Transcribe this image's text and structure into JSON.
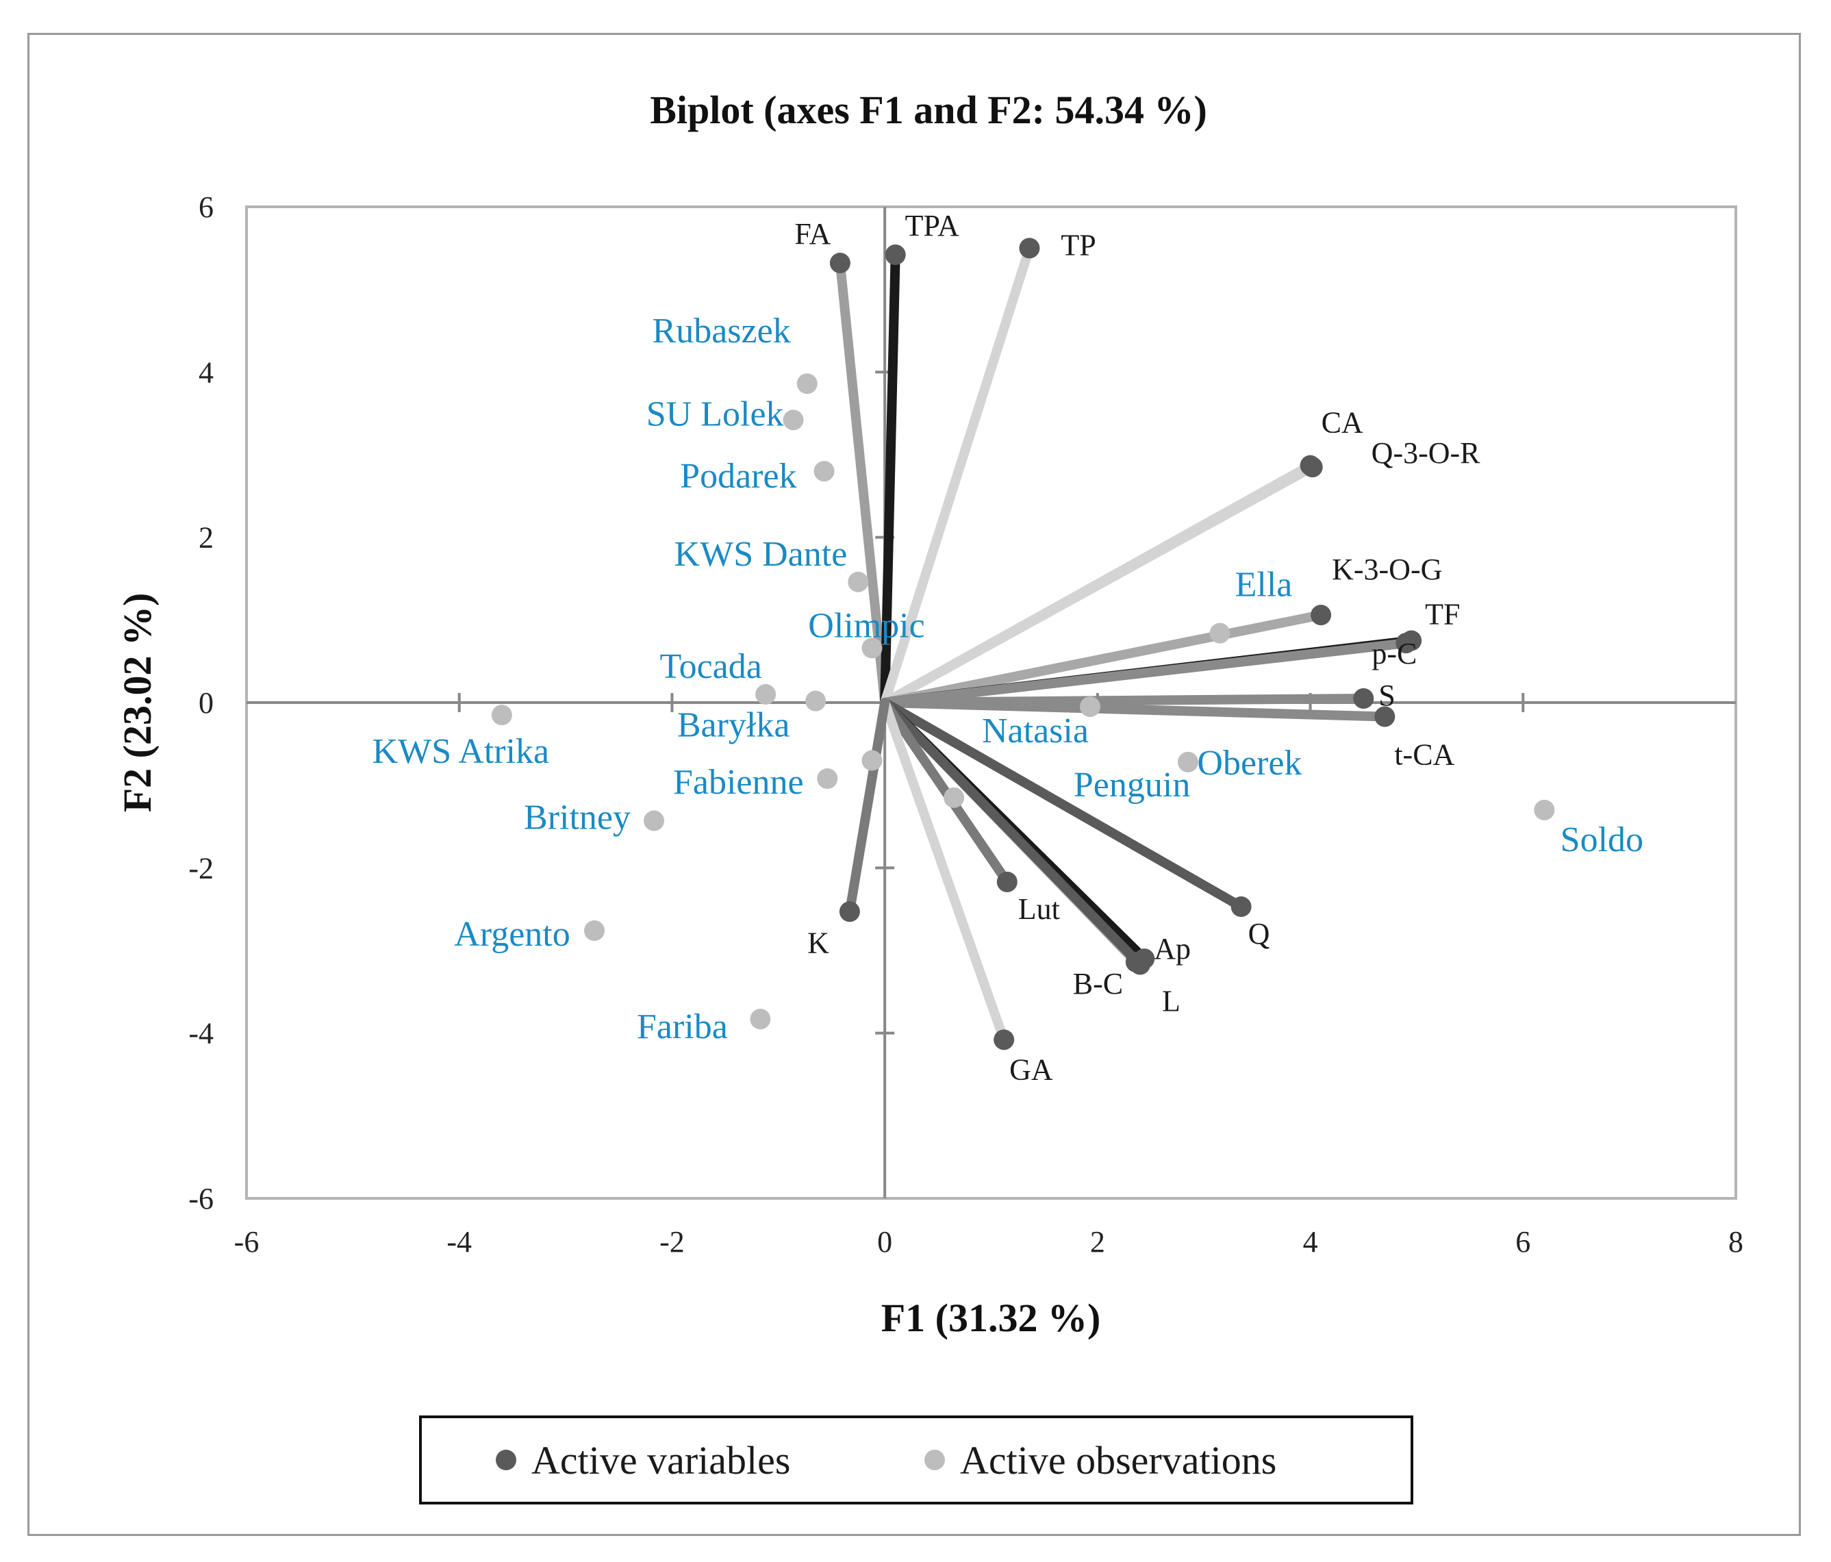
{
  "chart_data": {
    "type": "scatter",
    "title": "Biplot (axes F1 and F2: 54.34 %)",
    "xlabel": "F1 (31.32 %)",
    "ylabel": "F2 (23.02 %)",
    "xlim": [
      -6,
      8
    ],
    "ylim": [
      -6,
      6
    ],
    "xticks": [
      -6,
      -4,
      -2,
      0,
      2,
      4,
      6,
      8
    ],
    "yticks": [
      -6,
      -4,
      -2,
      0,
      2,
      4,
      6
    ],
    "grid": false,
    "legend_position": "bottom",
    "colors": {
      "variable_point": "#5a5a5a",
      "observation_point": "#bdbdbd",
      "variable_label": "#1a1a1a",
      "observation_label": "#1a8ac4",
      "axis": "#888888"
    },
    "series": [
      {
        "name": "Active variables",
        "color": "#5a5a5a",
        "points": [
          {
            "label": "FA",
            "x": -0.42,
            "y": 5.32,
            "line_color": "#9e9e9e"
          },
          {
            "label": "TPA",
            "x": 0.1,
            "y": 5.42,
            "line_color": "#1a1a1a"
          },
          {
            "label": "TP",
            "x": 1.36,
            "y": 5.5,
            "line_color": "#d4d4d4"
          },
          {
            "label": "CA",
            "x": 4.0,
            "y": 2.87,
            "line_color": "#d4d4d4"
          },
          {
            "label": "Q-3-O-R",
            "x": 4.02,
            "y": 2.85,
            "line_color": "#d4d4d4"
          },
          {
            "label": "K-3-O-G",
            "x": 4.1,
            "y": 1.06,
            "line_color": "#a8a8a8"
          },
          {
            "label": "TF",
            "x": 4.95,
            "y": 0.75,
            "line_color": "#1a1a1a"
          },
          {
            "label": "p-C",
            "x": 4.9,
            "y": 0.72,
            "line_color": "#8a8a8a"
          },
          {
            "label": "S",
            "x": 4.5,
            "y": 0.05,
            "line_color": "#8a8a8a"
          },
          {
            "label": "t-CA",
            "x": 4.7,
            "y": -0.17,
            "line_color": "#8a8a8a"
          },
          {
            "label": "Q",
            "x": 3.35,
            "y": -2.47,
            "line_color": "#5a5a5a"
          },
          {
            "label": "Ap",
            "x": 2.44,
            "y": -3.1,
            "line_color": "#1a1a1a"
          },
          {
            "label": "B-C",
            "x": 2.36,
            "y": -3.14,
            "line_color": "#a8a8a8"
          },
          {
            "label": "L",
            "x": 2.4,
            "y": -3.17,
            "line_color": "#5a5a5a"
          },
          {
            "label": "Lut",
            "x": 1.15,
            "y": -2.17,
            "line_color": "#7a7a7a"
          },
          {
            "label": "GA",
            "x": 1.12,
            "y": -4.08,
            "line_color": "#d4d4d4"
          },
          {
            "label": "K",
            "x": -0.33,
            "y": -2.53,
            "line_color": "#7a7a7a"
          }
        ]
      },
      {
        "name": "Active observations",
        "color": "#bdbdbd",
        "points": [
          {
            "label": "Rubaszek",
            "x": -0.73,
            "y": 3.86
          },
          {
            "label": "SU Lolek",
            "x": -0.86,
            "y": 3.42
          },
          {
            "label": "Podarek",
            "x": -0.57,
            "y": 2.8
          },
          {
            "label": "KWS Dante",
            "x": -0.25,
            "y": 1.46
          },
          {
            "label": "Olimpic",
            "x": -0.12,
            "y": 0.66
          },
          {
            "label": "Tocada",
            "x": -1.12,
            "y": 0.1
          },
          {
            "label": "KWS Atrika",
            "x": -3.6,
            "y": -0.15
          },
          {
            "label": "Baryłka",
            "x": -0.65,
            "y": 0.02
          },
          {
            "label": "Fabienne",
            "x": -0.54,
            "y": -0.92
          },
          {
            "label": "Britney",
            "x": -2.17,
            "y": -1.43
          },
          {
            "label": "Argento",
            "x": -2.73,
            "y": -2.76
          },
          {
            "label": "Fariba",
            "x": -1.17,
            "y": -3.83
          },
          {
            "label": "Natasia",
            "x": 1.93,
            "y": -0.05
          },
          {
            "label": "Oberek",
            "x": 2.85,
            "y": -0.72
          },
          {
            "label": "Penguin",
            "x": 0.65,
            "y": -1.15
          },
          {
            "label": "Ella",
            "x": 3.15,
            "y": 0.84
          },
          {
            "label": "Soldo",
            "x": 6.2,
            "y": -1.3
          },
          {
            "label": "",
            "x": -0.12,
            "y": -0.7
          }
        ]
      }
    ]
  }
}
